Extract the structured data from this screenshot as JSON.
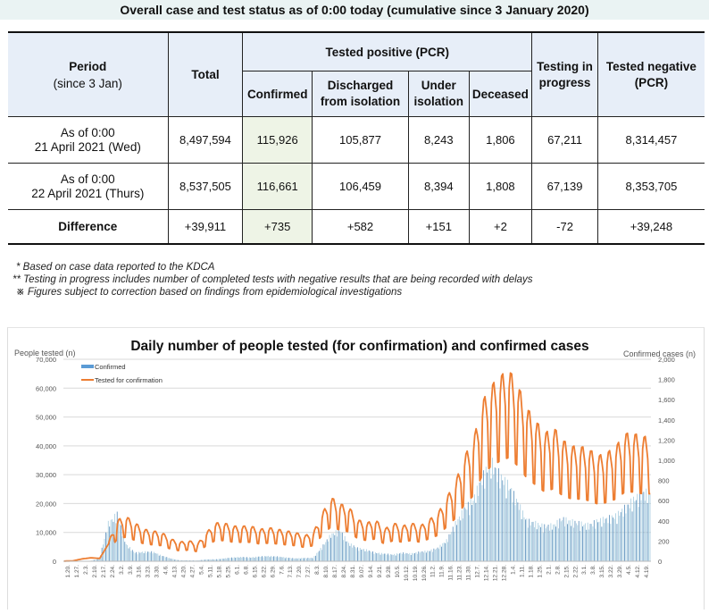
{
  "header": {
    "title": "Overall case and test status as of 0:00 today (cumulative since 3 January 2020)"
  },
  "table": {
    "col_period": "Period",
    "col_period_sub": "(since 3 Jan)",
    "col_total": "Total",
    "col_positive_group": "Tested positive (PCR)",
    "col_confirmed": "Confirmed",
    "col_discharged_1": "Discharged",
    "col_discharged_2": "from isolation",
    "col_under_1": "Under",
    "col_under_2": "isolation",
    "col_deceased": "Deceased",
    "col_testing_1": "Testing in",
    "col_testing_2": "progress",
    "col_negative_1": "Tested negative",
    "col_negative_2": "(PCR)",
    "rows": [
      {
        "label_1": "As of 0:00",
        "label_2": "21 April 2021 (Wed)",
        "total": "8,497,594",
        "confirmed": "115,926",
        "discharged": "105,877",
        "under_isolation": "8,243",
        "deceased": "1,806",
        "testing": "67,211",
        "negative": "8,314,457"
      },
      {
        "label_1": "As of 0:00",
        "label_2": "22 April 2021 (Thurs)",
        "total": "8,537,505",
        "confirmed": "116,661",
        "discharged": "106,459",
        "under_isolation": "8,394",
        "deceased": "1,808",
        "testing": "67,139",
        "negative": "8,353,705"
      }
    ],
    "difference": {
      "label": "Difference",
      "total": "+39,911",
      "confirmed": "+735",
      "discharged": "+582",
      "under_isolation": "+151",
      "deceased": "+2",
      "testing": "-72",
      "negative": "+39,248"
    }
  },
  "notes": [
    "* Based on case data reported to the KDCA",
    "** Testing in progress includes number of completed tests with negative results that are being recorded with delays",
    "※ Figures subject to correction based on findings from epidemiological investigations"
  ],
  "chart_data": {
    "type": "bar",
    "title": "Daily number of people tested (for confirmation) and confirmed cases",
    "ylabel": "People tested (n)",
    "y2label": "Confirmed cases (n)",
    "ylim": [
      0,
      70000
    ],
    "y2lim": [
      0,
      2000
    ],
    "yticks": [
      "0",
      "10,000",
      "20,000",
      "30,000",
      "40,000",
      "50,000",
      "60,000",
      "70,000"
    ],
    "y2ticks": [
      "0",
      "200",
      "400",
      "600",
      "800",
      "1,000",
      "1,200",
      "1,400",
      "1,600",
      "1,800",
      "2,000"
    ],
    "grid": true,
    "legend_position": "top-left",
    "categories": [
      "1.20.",
      "1.27.",
      "2.3.",
      "2.10.",
      "2.17.",
      "2.24.",
      "3.2.",
      "3.9.",
      "3.16.",
      "3.23.",
      "3.30.",
      "4.6.",
      "4.13.",
      "4.20.",
      "4.27.",
      "5.4.",
      "5.11.",
      "5.18.",
      "5.25.",
      "6.1.",
      "6.8.",
      "6.15.",
      "6.22.",
      "6.29.",
      "7.6.",
      "7.13.",
      "7.20.",
      "7.27.",
      "8.3.",
      "8.10.",
      "8.17.",
      "8.24.",
      "8.31.",
      "9.07.",
      "9.14.",
      "9.21.",
      "9.28.",
      "10.5.",
      "10.12.",
      "10.19.",
      "10.26.",
      "11.2.",
      "11.9.",
      "11.16.",
      "11.23.",
      "11.30.",
      "12.7.",
      "12.14.",
      "12.21.",
      "12.28.",
      "1.4.",
      "1.11.",
      "1.18.",
      "1.25.",
      "2.1.",
      "2.8.",
      "2.15.",
      "2.22.",
      "3.1.",
      "3.8.",
      "3.15.",
      "3.22.",
      "3.29.",
      "4.5.",
      "4.12.",
      "4.19."
    ],
    "series": [
      {
        "name": "Confirmed",
        "axis": "right",
        "kind": "bar",
        "color": "#9dc3d8",
        "values": [
          1,
          2,
          3,
          5,
          30,
          400,
          500,
          180,
          90,
          100,
          100,
          60,
          30,
          10,
          10,
          8,
          20,
          20,
          30,
          40,
          45,
          40,
          50,
          55,
          50,
          40,
          30,
          35,
          35,
          150,
          280,
          330,
          190,
          140,
          120,
          90,
          80,
          70,
          90,
          80,
          100,
          110,
          140,
          220,
          400,
          550,
          650,
          880,
          1050,
          900,
          800,
          620,
          430,
          400,
          370,
          380,
          450,
          420,
          400,
          380,
          430,
          450,
          480,
          560,
          650,
          720
        ]
      },
      {
        "name": "Tested for confirmation",
        "axis": "left",
        "kind": "line",
        "color": "#ed7d31",
        "values": [
          50,
          150,
          800,
          1200,
          1000,
          6000,
          13000,
          14000,
          12000,
          10000,
          9500,
          9000,
          7000,
          6000,
          6500,
          5500,
          9000,
          12000,
          12000,
          11000,
          11000,
          11000,
          10000,
          10500,
          10000,
          9500,
          9000,
          8000,
          9000,
          15000,
          20000,
          18000,
          17000,
          13000,
          12000,
          13000,
          10000,
          12000,
          11000,
          12000,
          11000,
          13000,
          15000,
          20000,
          25000,
          33000,
          38000,
          50000,
          55000,
          58000,
          60000,
          55000,
          48000,
          44000,
          40000,
          42000,
          38000,
          36000,
          36000,
          35000,
          33000,
          34000,
          36000,
          40000,
          40000,
          39000
        ]
      }
    ]
  }
}
